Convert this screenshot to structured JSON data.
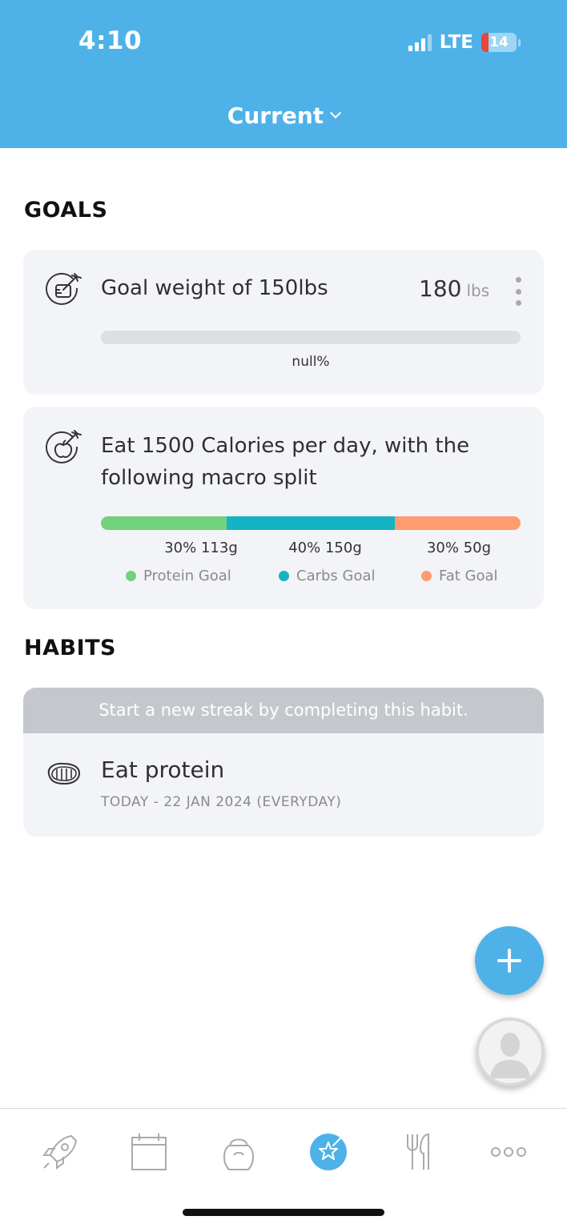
{
  "status_bar": {
    "time": "4:10",
    "network": "LTE",
    "battery": "14"
  },
  "header": {
    "selector_label": "Current"
  },
  "goals": {
    "section_title": "GOALS",
    "weight_goal": {
      "title": "Goal weight of 150lbs",
      "current_value": "180",
      "unit": "lbs",
      "progress_label": "null%",
      "icon": "target-goal-icon"
    },
    "calorie_goal": {
      "title_line1": "Eat 1500 Calories per day, with the",
      "title_line2": "following macro split",
      "icon": "apple-goal-icon",
      "macros": [
        {
          "value_label": "30% 113g",
          "legend": "Protein Goal",
          "color": "#72d27b",
          "fraction": 0.3
        },
        {
          "value_label": "40% 150g",
          "legend": "Carbs Goal",
          "color": "#15b4c4",
          "fraction": 0.4
        },
        {
          "value_label": "30% 50g",
          "legend": "Fat Goal",
          "color": "#fd9c6f",
          "fraction": 0.3
        }
      ]
    }
  },
  "habits": {
    "section_title": "HABITS",
    "items": [
      {
        "banner": "Start a new streak by completing this habit.",
        "title": "Eat protein",
        "subtitle": "TODAY - 22 JAN 2024 (EVERYDAY)",
        "icon": "steak-icon"
      }
    ]
  },
  "tabbar": {
    "items": [
      {
        "icon": "rocket-icon",
        "active": false
      },
      {
        "icon": "calendar-icon",
        "active": false
      },
      {
        "icon": "kettlebell-icon",
        "active": false
      },
      {
        "icon": "goals-star-icon",
        "active": true
      },
      {
        "icon": "fork-knife-icon",
        "active": false
      },
      {
        "icon": "more-icon",
        "active": false
      }
    ]
  },
  "colors": {
    "brand_blue": "#4eb2e8",
    "card_bg": "#f3f4f8",
    "track": "#dcdfe4"
  }
}
